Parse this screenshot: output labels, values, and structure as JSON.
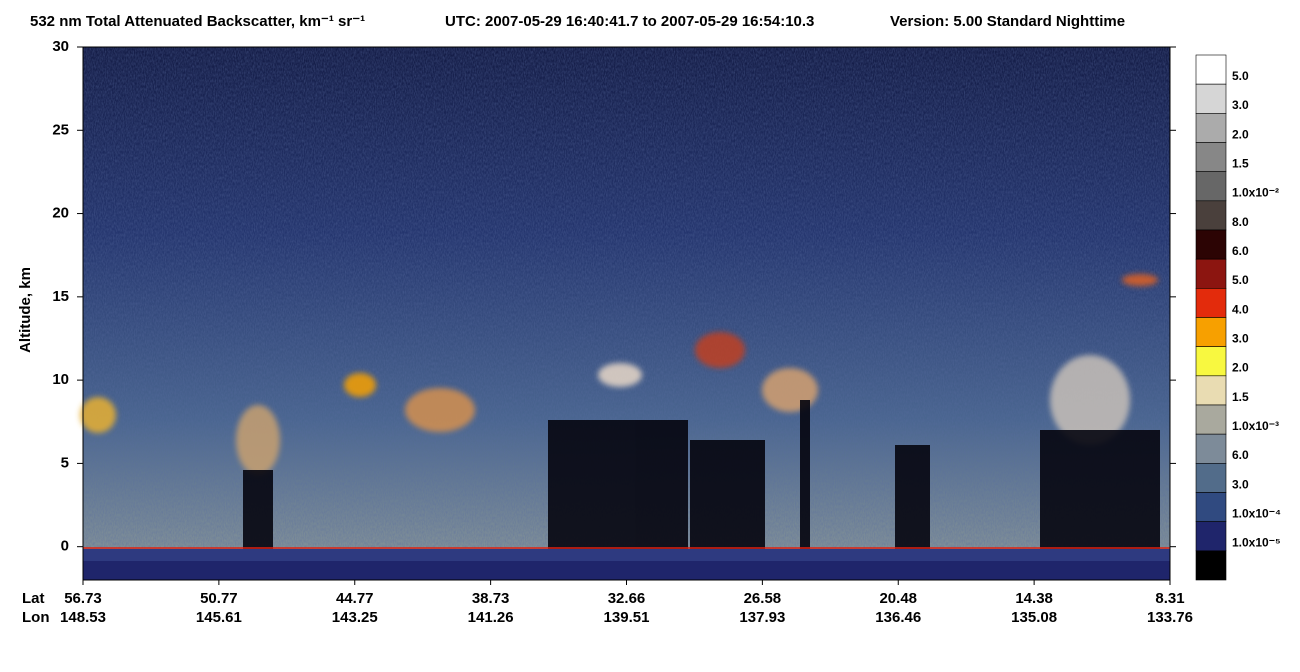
{
  "chart_data": {
    "type": "lidar-curtain",
    "title": "532 nm Total Attenuated Backscatter, km⁻¹ sr⁻¹",
    "time_range": "UTC:  2007-05-29 16:40:41.7  to  2007-05-29 16:54:10.3",
    "version": "Version: 5.00  Standard  Nighttime",
    "ylabel": "Altitude, km",
    "ylim": [
      -2,
      30
    ],
    "yticks": [
      0,
      5,
      10,
      15,
      20,
      25,
      30
    ],
    "lat_label": "Lat",
    "lon_label": "Lon",
    "lat": [
      56.73,
      50.77,
      44.77,
      38.73,
      32.66,
      26.58,
      20.48,
      14.38,
      8.31
    ],
    "lon": [
      148.53,
      145.61,
      143.25,
      141.26,
      139.51,
      137.93,
      136.46,
      135.08,
      133.76
    ],
    "colorbar": {
      "colors": [
        "#ffffff",
        "#d6d6d6",
        "#ababab",
        "#878787",
        "#676767",
        "#4a403c",
        "#2c0404",
        "#8c1510",
        "#e32b0c",
        "#f7a000",
        "#f8f840",
        "#e9dcb2",
        "#a9a99e",
        "#7d8b99",
        "#526c8a",
        "#304a80",
        "#1f256b",
        "#000000"
      ],
      "labels": [
        "5.0",
        "3.0",
        "2.0",
        "1.5",
        "1.0x10⁻²",
        "8.0",
        "6.0",
        "5.0",
        "4.0",
        "3.0",
        "2.0",
        "1.5",
        "1.0x10⁻³",
        "6.0",
        "3.0",
        "1.0x10⁻⁴",
        "1.0x10⁻⁵"
      ]
    }
  }
}
